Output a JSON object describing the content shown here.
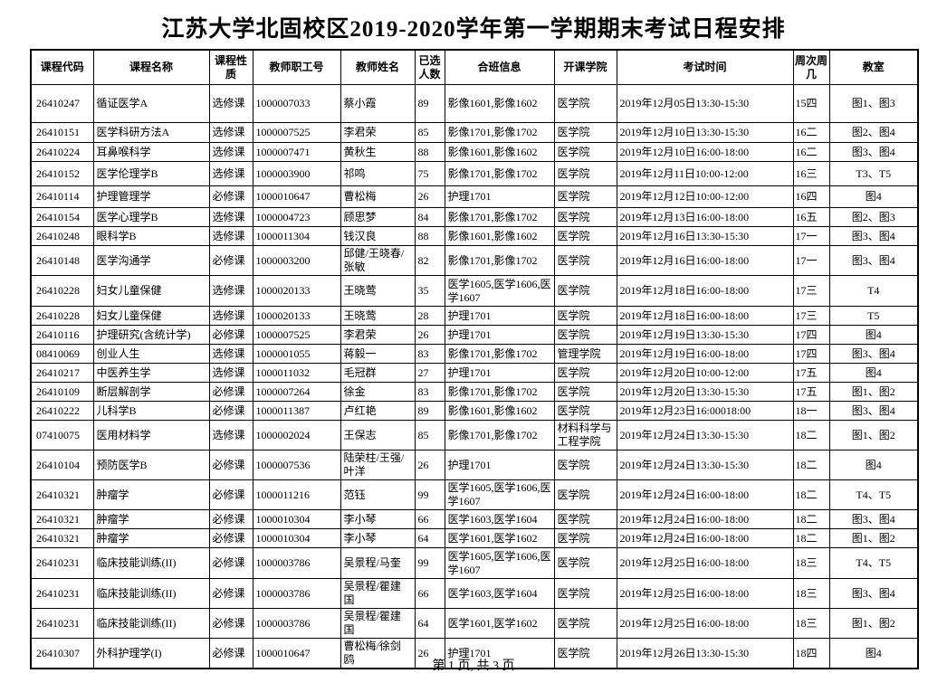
{
  "page": {
    "title": "江苏大学北固校区2019-2020学年第一学期期末考试日程安排",
    "footer": "第 1 页, 共 3 页"
  },
  "table": {
    "columns": [
      "课程代码",
      "课程名称",
      "课程性质",
      "教师职工号",
      "教师姓名",
      "已选人数",
      "合班信息",
      "开课学院",
      "考试时间",
      "周次周几",
      "教室"
    ],
    "column_keys": [
      "course-code",
      "course-name",
      "course-type",
      "staff-id",
      "teacher-name",
      "enrolled-count",
      "class-info",
      "college",
      "exam-time",
      "week-day",
      "classroom"
    ],
    "rows": [
      [
        "26410247",
        "循证医学A",
        "选修课",
        "1000007033",
        "蔡小霞",
        "89",
        "影像1601,影像1602",
        "医学院",
        "2019年12月05日13:30-15:30",
        "15四",
        "图1、图3"
      ],
      [
        "26410151",
        "医学科研方法A",
        "选修课",
        "1000007525",
        "李君荣",
        "85",
        "影像1701,影像1702",
        "医学院",
        "2019年12月10日13:30-15:30",
        "16二",
        "图2、图4"
      ],
      [
        "26410224",
        "耳鼻喉科学",
        "选修课",
        "1000007471",
        "黄秋生",
        "88",
        "影像1601,影像1602",
        "医学院",
        "2019年12月10日16:00-18:00",
        "16二",
        "图3、图4"
      ],
      [
        "26410152",
        "医学伦理学B",
        "选修课",
        "1000003900",
        "祁鸣",
        "75",
        "影像1701,影像1702",
        "医学院",
        "2019年12月11日10:00-12:00",
        "16三",
        "T3、T5"
      ],
      [
        "26410114",
        "护理管理学",
        "必修课",
        "1000010647",
        "曹松梅",
        "26",
        "护理1701",
        "医学院",
        "2019年12月12日10:00-12:00",
        "16四",
        "图4"
      ],
      [
        "26410154",
        "医学心理学B",
        "选修课",
        "1000004723",
        "顾思梦",
        "84",
        "影像1701,影像1702",
        "医学院",
        "2019年12月13日16:00-18:00",
        "16五",
        "图2、图3"
      ],
      [
        "26410248",
        "眼科学B",
        "选修课",
        "1000011304",
        "钱汉良",
        "88",
        "影像1601,影像1602",
        "医学院",
        "2019年12月16日13:30-15:30",
        "17一",
        "图3、图4"
      ],
      [
        "26410148",
        "医学沟通学",
        "必修课",
        "1000003200",
        "邱健/王晓春/张敏",
        "82",
        "影像1701,影像1702",
        "医学院",
        "2019年12月16日16:00-18:00",
        "17一",
        "图3、图4"
      ],
      [
        "26410228",
        "妇女儿童保健",
        "选修课",
        "1000020133",
        "王晓莺",
        "35",
        "医学1605,医学1606,医学1607",
        "医学院",
        "2019年12月18日16:00-18:00",
        "17三",
        "T4"
      ],
      [
        "26410228",
        "妇女儿童保健",
        "选修课",
        "1000020133",
        "王晓莺",
        "28",
        "护理1701",
        "医学院",
        "2019年12月18日16:00-18:00",
        "17三",
        "T5"
      ],
      [
        "26410116",
        "护理研究(含统计学)",
        "必修课",
        "1000007525",
        "李君荣",
        "26",
        "护理1701",
        "医学院",
        "2019年12月19日13:30-15:30",
        "17四",
        "图4"
      ],
      [
        "08410069",
        "创业人生",
        "选修课",
        "1000001055",
        "蒋毅一",
        "83",
        "影像1701,影像1702",
        "管理学院",
        "2019年12月19日16:00-18:00",
        "17四",
        "图3、图4"
      ],
      [
        "26410217",
        "中医养生学",
        "选修课",
        "1000011032",
        "毛冠群",
        "27",
        "护理1701",
        "医学院",
        "2019年12月20日10:00-12:00",
        "17五",
        "图4"
      ],
      [
        "26410109",
        "断层解剖学",
        "必修课",
        "1000007264",
        "徐金",
        "83",
        "影像1701,影像1702",
        "医学院",
        "2019年12月20日13:30-15:30",
        "17五",
        "图1、图2"
      ],
      [
        "26410222",
        "儿科学B",
        "必修课",
        "1000011387",
        "卢红艳",
        "89",
        "影像1601,影像1602",
        "医学院",
        "2019年12月23日16:00018:00",
        "18一",
        "图3、图4"
      ],
      [
        "07410075",
        "医用材料学",
        "选修课",
        "1000002024",
        "王保志",
        "85",
        "影像1701,影像1702",
        "材料科学与工程学院",
        "2019年12月24日13:30-15:30",
        "18二",
        "图1、图2"
      ],
      [
        "26410104",
        "预防医学B",
        "必修课",
        "1000007536",
        "陆荣柱/王强/叶洋",
        "26",
        "护理1701",
        "医学院",
        "2019年12月24日13:30-15:30",
        "18二",
        "图4"
      ],
      [
        "26410321",
        "肿瘤学",
        "必修课",
        "1000011216",
        "范钰",
        "99",
        "医学1605,医学1606,医学1607",
        "医学院",
        "2019年12月24日16:00-18:00",
        "18二",
        "T4、T5"
      ],
      [
        "26410321",
        "肿瘤学",
        "必修课",
        "1000010304",
        "李小琴",
        "66",
        "医学1603,医学1604",
        "医学院",
        "2019年12月24日16:00-18:00",
        "18二",
        "图3、图4"
      ],
      [
        "26410321",
        "肿瘤学",
        "必修课",
        "1000010304",
        "李小琴",
        "64",
        "医学1601,医学1602",
        "医学院",
        "2019年12月24日16:00-18:00",
        "18二",
        "图1、图2"
      ],
      [
        "26410231",
        "临床技能训练(II)",
        "必修课",
        "1000003786",
        "吴景程/马奎",
        "99",
        "医学1605,医学1606,医学1607",
        "医学院",
        "2019年12月25日16:00-18:00",
        "18三",
        "T4、T5"
      ],
      [
        "26410231",
        "临床技能训练(II)",
        "必修课",
        "1000003786",
        "吴景程/瞿建国",
        "66",
        "医学1603,医学1604",
        "医学院",
        "2019年12月25日16:00-18:00",
        "18三",
        "图3、图4"
      ],
      [
        "26410231",
        "临床技能训练(II)",
        "必修课",
        "1000003786",
        "吴景程/瞿建国",
        "64",
        "医学1601,医学1602",
        "医学院",
        "2019年12月25日16:00-18:00",
        "18三",
        "图1、图2"
      ],
      [
        "26410307",
        "外科护理学(I)",
        "必修课",
        "1000010647",
        "曹松梅/徐剑鸥",
        "26",
        "护理1701",
        "医学院",
        "2019年12月26日13:30-15:30",
        "18四",
        "图4"
      ]
    ]
  }
}
